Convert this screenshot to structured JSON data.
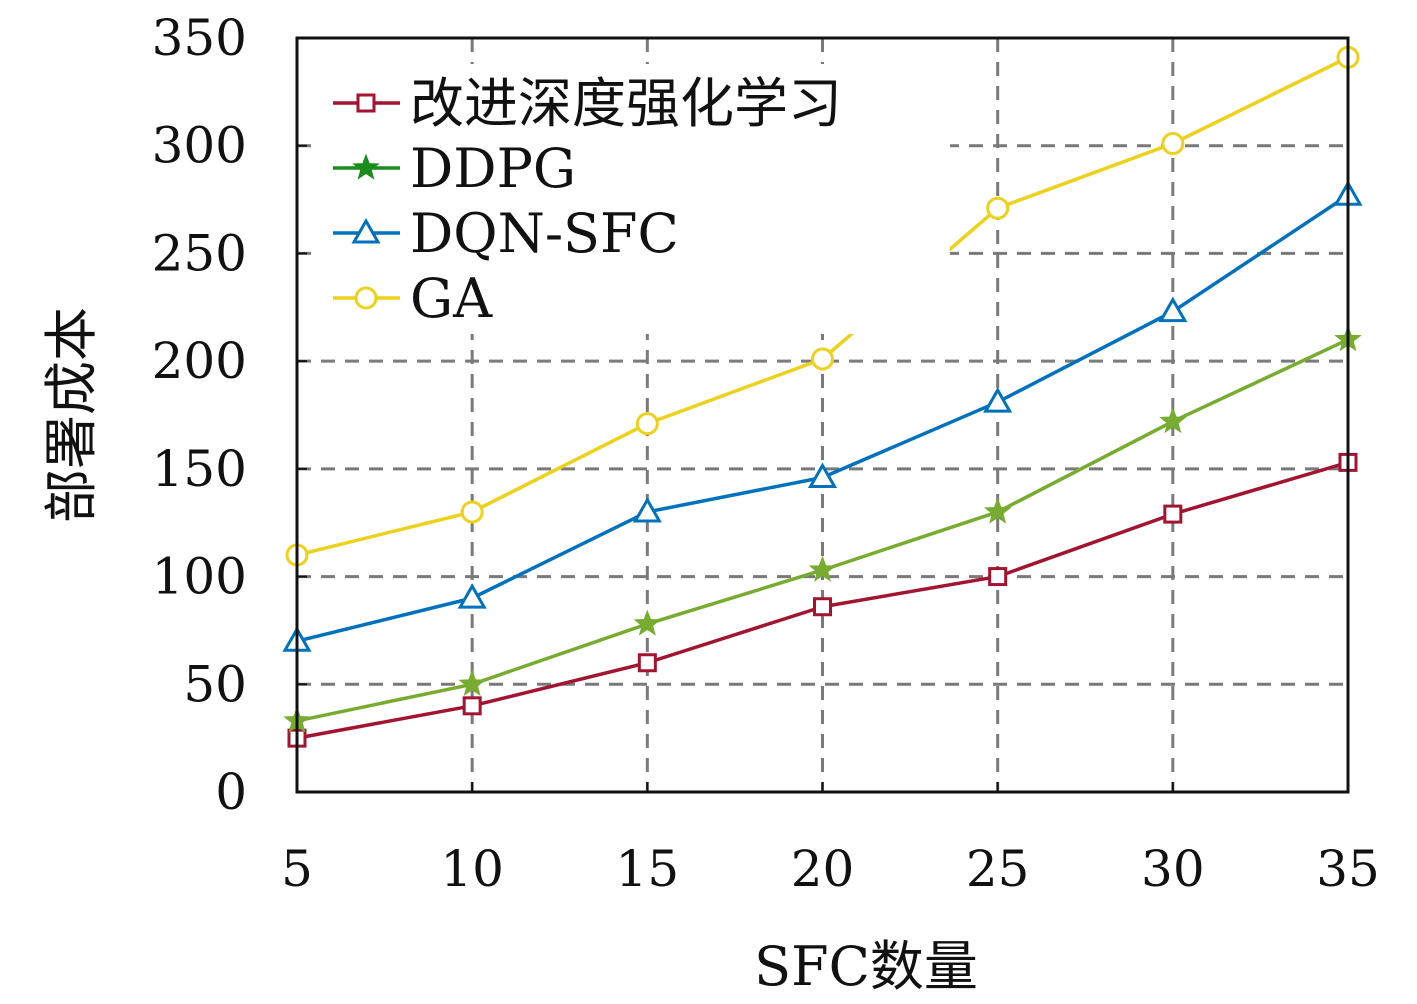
{
  "chart_data": {
    "type": "line",
    "title": "",
    "xlabel": "SFC数量",
    "ylabel": "部署成本",
    "x": [
      5,
      10,
      15,
      20,
      25,
      30,
      35
    ],
    "xlim": [
      5,
      35
    ],
    "ylim": [
      0,
      350
    ],
    "xticks": [
      "5",
      "10",
      "15",
      "20",
      "25",
      "30",
      "35"
    ],
    "yticks": [
      "0",
      "50",
      "100",
      "150",
      "200",
      "250",
      "300",
      "350"
    ],
    "grid": true,
    "legend_position": "top-left",
    "series": [
      {
        "name": "改进深度强化学习",
        "color": "#a2142f",
        "marker": "square",
        "values": [
          25,
          40,
          60,
          86,
          100,
          129,
          153
        ]
      },
      {
        "name": "DDPG",
        "color": "#77ac30",
        "legend_color": "#1a8c1a",
        "marker": "star",
        "values": [
          33,
          50,
          78,
          103,
          130,
          172,
          210
        ]
      },
      {
        "name": "DQN-SFC",
        "color": "#0072bd",
        "marker": "triangle",
        "values": [
          70,
          90,
          130,
          146,
          181,
          223,
          277
        ]
      },
      {
        "name": "GA",
        "color": "#edd11a",
        "marker": "circle",
        "values": [
          110,
          130,
          171,
          201,
          271,
          301,
          341
        ]
      }
    ]
  }
}
